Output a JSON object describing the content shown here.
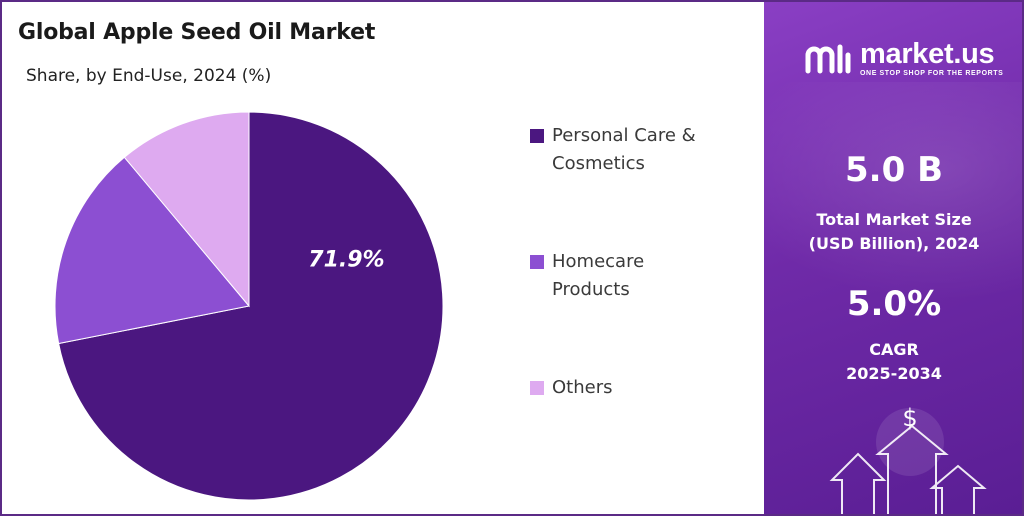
{
  "chart_data": {
    "type": "pie",
    "title": "Global Apple Seed Oil Market",
    "subtitle": "Share, by  End-Use, 2024 (%)",
    "categories": [
      "Personal Care & Cosmetics",
      "Homecare Products",
      "Others"
    ],
    "values": [
      71.9,
      17.0,
      11.1
    ],
    "colors": [
      "#4b1780",
      "#8c4fd2",
      "#deaaf0"
    ],
    "data_labels": [
      "71.9%",
      "",
      ""
    ],
    "legend_position": "right",
    "legend": [
      {
        "line1": "Personal Care &",
        "line2": "Cosmetics"
      },
      {
        "line1": "Homecare",
        "line2": "Products"
      },
      {
        "line1": "Others",
        "line2": ""
      }
    ]
  },
  "brand": {
    "name": "market.us",
    "tagline": "ONE STOP SHOP FOR THE REPORTS"
  },
  "stats": {
    "market_size_value": "5.0 B",
    "market_size_label_line1": "Total Market Size",
    "market_size_label_line2": "(USD Billion), 2024",
    "cagr_value": "5.0%",
    "cagr_label_line1": "CAGR",
    "cagr_label_line2": "2025-2034"
  },
  "decor": {
    "currency_symbol": "$",
    "icon": "growth-arrows-icon"
  }
}
